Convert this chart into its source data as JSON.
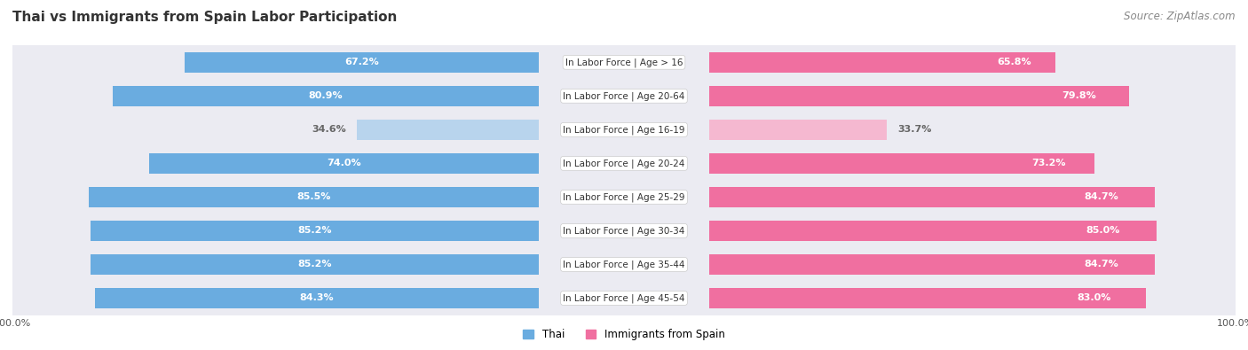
{
  "title": "Thai vs Immigrants from Spain Labor Participation",
  "source": "Source: ZipAtlas.com",
  "categories": [
    "In Labor Force | Age > 16",
    "In Labor Force | Age 20-64",
    "In Labor Force | Age 16-19",
    "In Labor Force | Age 20-24",
    "In Labor Force | Age 25-29",
    "In Labor Force | Age 30-34",
    "In Labor Force | Age 35-44",
    "In Labor Force | Age 45-54"
  ],
  "thai_values": [
    67.2,
    80.9,
    34.6,
    74.0,
    85.5,
    85.2,
    85.2,
    84.3
  ],
  "spain_values": [
    65.8,
    79.8,
    33.7,
    73.2,
    84.7,
    85.0,
    84.7,
    83.0
  ],
  "thai_color_full": "#6aace0",
  "thai_color_light": "#b8d4ed",
  "spain_color_full": "#f06fa0",
  "spain_color_light": "#f5b8d0",
  "label_color_full": "#ffffff",
  "label_color_light": "#666666",
  "threshold": 50,
  "max_val": 100.0,
  "row_bg_color": "#ebebf2",
  "row_gap_color": "#ffffff",
  "title_fontsize": 11,
  "source_fontsize": 8.5,
  "bar_label_fontsize": 8,
  "category_fontsize": 7.5,
  "legend_fontsize": 8.5,
  "axis_label_fontsize": 8
}
